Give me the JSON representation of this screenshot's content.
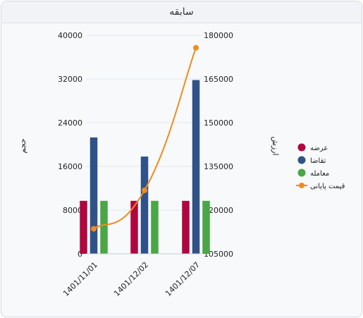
{
  "panel": {
    "title": "سابقه"
  },
  "chart_data": {
    "type": "bar",
    "categories": [
      "1401/11/01",
      "1401/12/02",
      "1401/12/07"
    ],
    "y_left": {
      "label": "حجم",
      "min": 0,
      "max": 40000,
      "ticks": [
        0,
        8000,
        16000,
        24000,
        32000,
        40000
      ]
    },
    "y_right": {
      "label": "ارزش",
      "min": 105000,
      "max": 180000,
      "ticks": [
        105000,
        120000,
        135000,
        150000,
        165000,
        180000
      ]
    },
    "series": [
      {
        "name": "عرضه",
        "type": "bar",
        "axis": "left",
        "color": "#b0063f",
        "values": [
          9700,
          9700,
          9700
        ]
      },
      {
        "name": "تقاضا",
        "type": "bar",
        "axis": "left",
        "color": "#2f5289",
        "values": [
          21300,
          17800,
          31800
        ]
      },
      {
        "name": "معامله",
        "type": "bar",
        "axis": "left",
        "color": "#4aa646",
        "values": [
          9700,
          9700,
          9700
        ]
      },
      {
        "name": "قیمت پایانی",
        "type": "line",
        "axis": "right",
        "color": "#f08c1e",
        "values": [
          113600,
          126800,
          175700
        ]
      }
    ],
    "grid": true,
    "legend_position": "right"
  }
}
